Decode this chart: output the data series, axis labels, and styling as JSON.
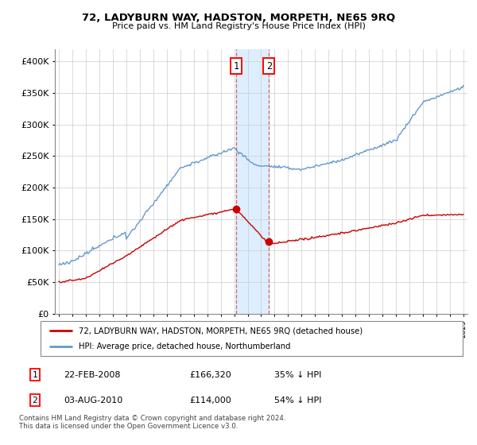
{
  "title": "72, LADYBURN WAY, HADSTON, MORPETH, NE65 9RQ",
  "subtitle": "Price paid vs. HM Land Registry's House Price Index (HPI)",
  "legend_line1": "72, LADYBURN WAY, HADSTON, MORPETH, NE65 9RQ (detached house)",
  "legend_line2": "HPI: Average price, detached house, Northumberland",
  "footnote": "Contains HM Land Registry data © Crown copyright and database right 2024.\nThis data is licensed under the Open Government Licence v3.0.",
  "transaction1_date": "22-FEB-2008",
  "transaction1_price": "£166,320",
  "transaction1_hpi": "35% ↓ HPI",
  "transaction2_date": "03-AUG-2010",
  "transaction2_price": "£114,000",
  "transaction2_hpi": "54% ↓ HPI",
  "red_color": "#cc0000",
  "blue_color": "#6699cc",
  "shade_color": "#ddeeff",
  "grid_color": "#cccccc",
  "ylim": [
    0,
    420000
  ],
  "yticks": [
    0,
    50000,
    100000,
    150000,
    200000,
    250000,
    300000,
    350000,
    400000
  ],
  "ytick_labels": [
    "£0",
    "£50K",
    "£100K",
    "£150K",
    "£200K",
    "£250K",
    "£300K",
    "£350K",
    "£400K"
  ],
  "year_start": 1995,
  "year_end": 2025,
  "transaction1_year": 2008.13,
  "transaction2_year": 2010.58,
  "transaction1_value": 166320,
  "transaction2_value": 114000
}
